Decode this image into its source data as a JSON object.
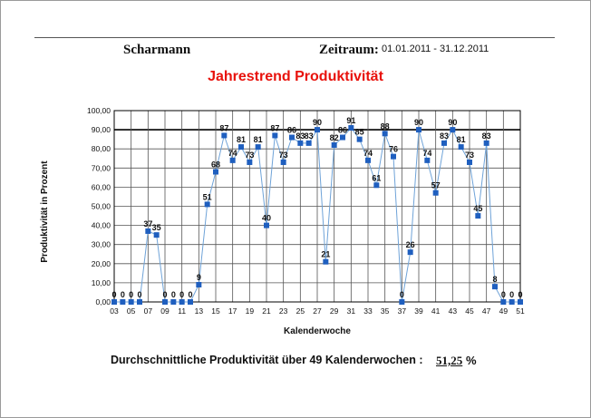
{
  "header": {
    "name": "Scharmann",
    "zeitraum_label": "Zeitraum:",
    "zeitraum_value": "01.01.2011 - 31.12.2011"
  },
  "footer": {
    "avg_label": "Durchschnittliche Produktivität über 49  Kalenderwochen :",
    "avg_value": "51,25",
    "avg_unit": "%"
  },
  "colors": {
    "title": "#e8120c",
    "line": "#6fa3d8",
    "marker": "#1f5fbf"
  },
  "chart_data": {
    "type": "line",
    "title": "Jahrestrend Produktivität",
    "xlabel": "Kalenderwoche",
    "ylabel": "Produktivität in Prozent",
    "ylim": [
      0,
      100
    ],
    "yticks": [
      "0,00",
      "10,00",
      "20,00",
      "30,00",
      "40,00",
      "50,00",
      "60,00",
      "70,00",
      "80,00",
      "90,00",
      "100,00"
    ],
    "xticks": [
      "03",
      "05",
      "07",
      "09",
      "11",
      "13",
      "15",
      "17",
      "19",
      "21",
      "23",
      "25",
      "27",
      "29",
      "31",
      "33",
      "35",
      "37",
      "39",
      "41",
      "43",
      "45",
      "47",
      "49",
      "51"
    ],
    "grid": true,
    "x": [
      3,
      4,
      5,
      6,
      7,
      8,
      9,
      10,
      11,
      12,
      13,
      14,
      15,
      16,
      17,
      18,
      19,
      20,
      21,
      22,
      23,
      24,
      25,
      26,
      27,
      28,
      29,
      30,
      31,
      32,
      33,
      34,
      35,
      36,
      37,
      38,
      39,
      40,
      41,
      42,
      43,
      44,
      45,
      46,
      47,
      48,
      49,
      50,
      51
    ],
    "values": [
      0,
      0,
      0,
      0,
      37,
      35,
      0,
      0,
      0,
      0,
      9,
      51,
      68,
      87,
      74,
      81,
      73,
      81,
      40,
      87,
      73,
      86,
      83,
      83,
      90,
      21,
      82,
      86,
      91,
      85,
      74,
      61,
      88,
      76,
      0,
      26,
      90,
      74,
      57,
      83,
      90,
      81,
      73,
      45,
      83,
      8,
      0,
      0,
      0
    ]
  }
}
